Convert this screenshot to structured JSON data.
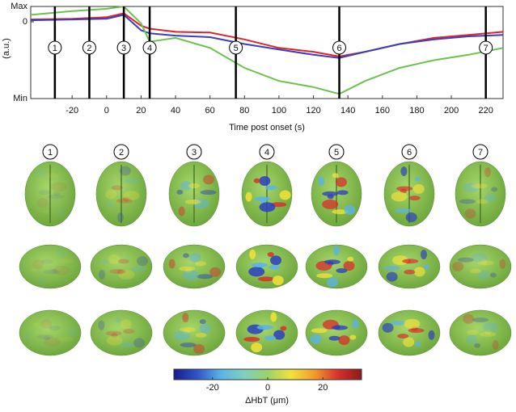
{
  "chart_data": [
    {
      "type": "line",
      "xlabel": "Time post onset (s)",
      "ylabel": "(a.u.)",
      "x": [
        -44,
        -20,
        0,
        10,
        20,
        25,
        40,
        60,
        80,
        100,
        120,
        135,
        150,
        170,
        190,
        210,
        230
      ],
      "series": [
        {
          "color": "#e0242a",
          "values": [
            0.03,
            0.04,
            0.06,
            0.11,
            -0.05,
            -0.09,
            -0.13,
            -0.14,
            -0.23,
            -0.34,
            -0.39,
            -0.45,
            -0.39,
            -0.29,
            -0.21,
            -0.17,
            -0.13
          ]
        },
        {
          "color": "#3a3fc0",
          "values": [
            0.02,
            0.03,
            0.04,
            0.09,
            -0.11,
            -0.15,
            -0.18,
            -0.2,
            -0.29,
            -0.36,
            -0.43,
            -0.47,
            -0.39,
            -0.29,
            -0.23,
            -0.19,
            -0.17
          ]
        },
        {
          "color": "#6cc24a",
          "values": [
            0.09,
            0.14,
            0.17,
            0.2,
            -0.02,
            -0.26,
            -0.21,
            -0.34,
            -0.6,
            -0.77,
            -0.85,
            -0.94,
            -0.77,
            -0.6,
            -0.5,
            -0.43,
            -0.34
          ]
        }
      ],
      "xlim": [
        -44,
        230
      ],
      "xticks": [
        -20,
        0,
        20,
        40,
        60,
        80,
        100,
        120,
        140,
        160,
        180,
        200,
        220
      ],
      "ylim": [
        -1,
        0.2
      ],
      "yticks": [
        {
          "value": 0.2,
          "label": "Max"
        },
        0,
        {
          "value": -1,
          "label": "Min"
        }
      ],
      "markers": [
        {
          "x": -30,
          "label": "1"
        },
        {
          "x": -10,
          "label": "2"
        },
        {
          "x": 10,
          "label": "3"
        },
        {
          "x": 25,
          "label": "4"
        },
        {
          "x": 75,
          "label": "5"
        },
        {
          "x": 135,
          "label": "6"
        },
        {
          "x": 220,
          "label": "7"
        }
      ]
    },
    {
      "type": "colorbar",
      "label": "ΔHbT (μm)",
      "clim": [
        -34,
        34
      ],
      "ticks": [
        -20,
        0,
        20
      ],
      "colormap": [
        "#1a1a8c",
        "#2f55c8",
        "#5ab4e6",
        "#7fd0c0",
        "#9bd26a",
        "#f2e23a",
        "#f39a2a",
        "#d8302a",
        "#8c1a1a"
      ]
    }
  ]
}
